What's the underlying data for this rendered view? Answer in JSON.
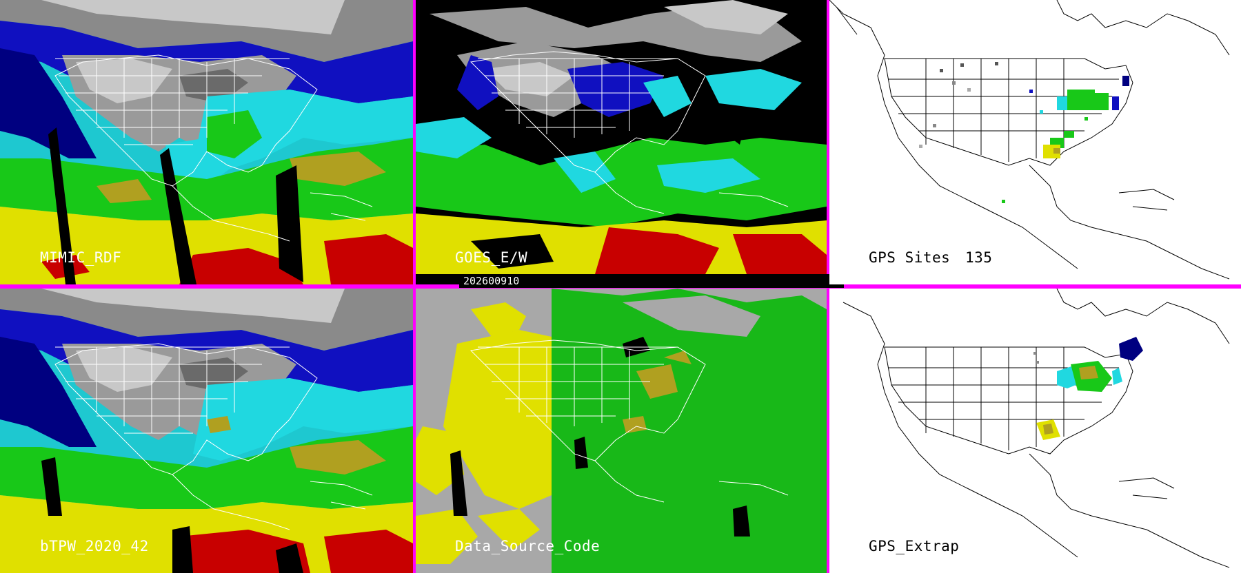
{
  "panels": {
    "mimic": {
      "label": "MIMIC_RDF"
    },
    "goes": {
      "label": "GOES_E/W"
    },
    "gps": {
      "label": "GPS Sites",
      "count": "135"
    },
    "btpw": {
      "label": "bTPW_2020_42"
    },
    "dsc": {
      "label": "Data_Source_Code"
    },
    "gpsx": {
      "label": "GPS_Extrap"
    }
  },
  "date_bar": {
    "text": "202600910"
  },
  "colors": {
    "divider": "#ff00ff",
    "tpw_yellow": "#e0e000",
    "tpw_red": "#c80000",
    "tpw_green": "#18c818",
    "tpw_cyan": "#20d8e0",
    "tpw_blue": "#1010c8",
    "tpw_navy": "#000080",
    "tpw_gray": "#9a9a9a",
    "source_gray": "#a8a8a8",
    "source_yellow": "#e0e000",
    "source_green": "#18b818",
    "source_olive": "#b0a020"
  }
}
